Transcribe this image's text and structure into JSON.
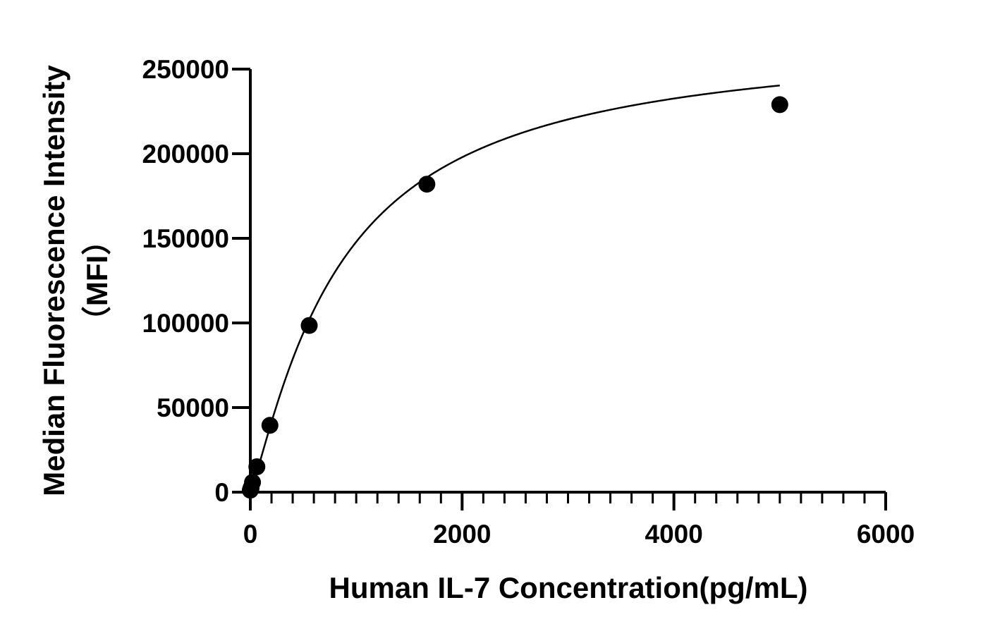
{
  "chart_data": {
    "type": "scatter",
    "xlabel": "Human IL-7 Concentration(pg/mL)",
    "ylabel_lines": [
      "Median Fluorescence Intensity",
      "（MFI）"
    ],
    "xlim": [
      0,
      6000
    ],
    "ylim": [
      0,
      250000
    ],
    "x_ticks": [
      0,
      2000,
      4000,
      6000
    ],
    "x_tick_labels": [
      "0",
      "2000",
      "4000",
      "6000"
    ],
    "x_minor_step": 200,
    "y_ticks": [
      0,
      50000,
      100000,
      150000,
      200000,
      250000
    ],
    "y_tick_labels": [
      "0",
      "50000",
      "100000",
      "150000",
      "200000",
      "250000"
    ],
    "grid": false,
    "series": [
      {
        "x": [
          0,
          6.86,
          20.6,
          61.7,
          185,
          556,
          1667,
          5000
        ],
        "y": [
          1200,
          2500,
          5800,
          15000,
          39500,
          98500,
          182000,
          229000
        ]
      }
    ],
    "fit_curve": {
      "model": "4PL",
      "bottom": 0,
      "top": 270000,
      "ec50": 850,
      "hill": 1.18
    },
    "colors": {
      "marker": "#000000",
      "line": "#000000",
      "axis": "#000000"
    }
  }
}
